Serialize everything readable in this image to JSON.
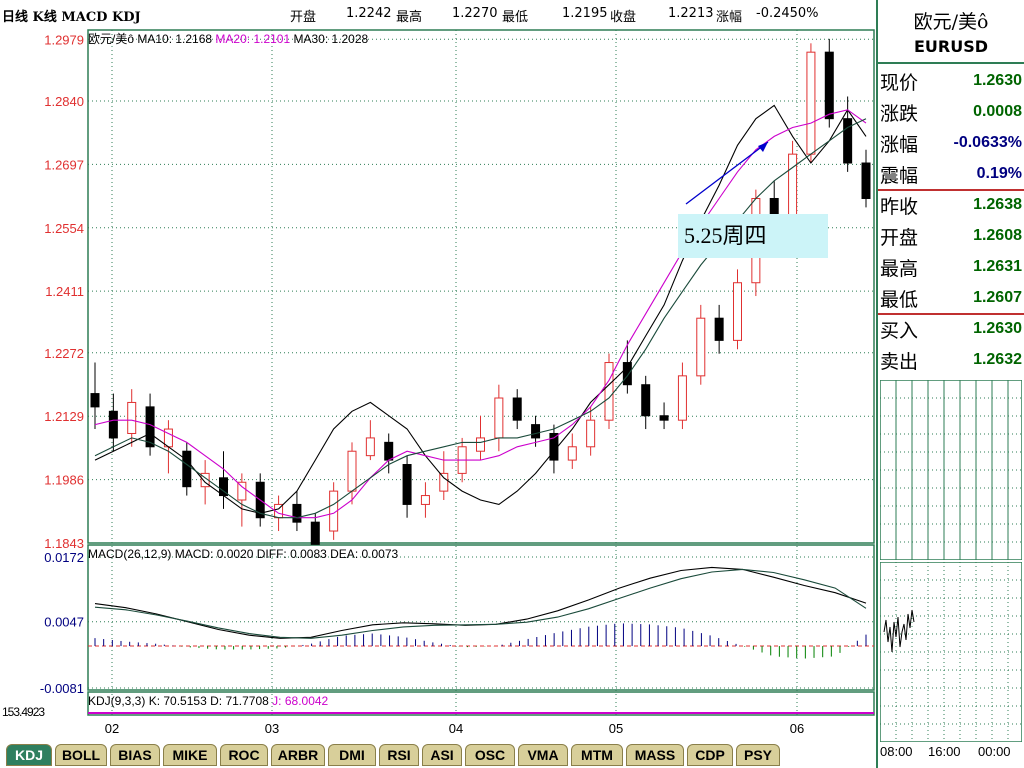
{
  "header": {
    "title": "日线 K线 MACD KDJ",
    "open_label": "开盘",
    "open_value": "1.2242",
    "high_label": "最高",
    "high_value": "1.2270",
    "low_label": "最低",
    "low_value": "1.2195",
    "close_label": "收盘",
    "close_value": "1.2213",
    "change_label": "涨幅",
    "change_value": "-0.2450%"
  },
  "legend": {
    "name": "欧元/美ô",
    "ma10": "MA10: 1.2168",
    "ma20": "MA20: 1.2101",
    "ma30": "MA30: 1.2028"
  },
  "macd_legend": {
    "params": "MACD(26,12,9)",
    "macd": "MACD: 0.0020",
    "diff": "DIFF: 0.0083",
    "dea": "DEA: 0.0073"
  },
  "kdj_legend": {
    "params": "KDJ(9,3,3)",
    "k": "K: 70.5153",
    "d": "D: 71.7708",
    "j": "J: 68.0042",
    "axis_overlap": "153.4923"
  },
  "annotation": {
    "text": "5.25周四"
  },
  "side": {
    "name": "欧元/美ô",
    "code": "EURUSD",
    "quotes": [
      {
        "k": "现价",
        "v": "1.2630"
      },
      {
        "k": "涨跌",
        "v": "0.0008"
      },
      {
        "k": "涨幅",
        "v": "-0.0633%"
      },
      {
        "k": "震幅",
        "v": "0.19%"
      },
      {
        "k": "昨收",
        "v": "1.2638"
      },
      {
        "k": "开盘",
        "v": "1.2608"
      },
      {
        "k": "最高",
        "v": "1.2631"
      },
      {
        "k": "最低",
        "v": "1.2607"
      },
      {
        "k": "买入",
        "v": "1.2630"
      },
      {
        "k": "卖出",
        "v": "1.2632"
      }
    ],
    "time_labels": [
      "08:00",
      "16:00",
      "00:00"
    ]
  },
  "tabs": [
    "KDJ",
    "BOLL",
    "BIAS",
    "MIKE",
    "ROC",
    "ARBR",
    "DMI",
    "RSI",
    "ASI",
    "OSC",
    "VMA",
    "MTM",
    "MASS",
    "CDP",
    "PSY"
  ],
  "colors": {
    "up": "#e03030",
    "down": "#000000",
    "ma10": "#000000",
    "ma20": "#cc00cc",
    "ma30": "#1a4a3a",
    "grid": "#2e7d55",
    "panel_border": "#2e7d55"
  },
  "chart_data": [
    {
      "type": "candlestick",
      "title": "欧元/美ô",
      "ylim": [
        1.1843,
        1.3
      ],
      "yticks": [
        "1.2979",
        "1.2840",
        "1.2697",
        "1.2554",
        "1.2411",
        "1.2272",
        "1.2129",
        "1.1986",
        "1.1843"
      ],
      "xticks": [
        "02",
        "03",
        "04",
        "05",
        "06"
      ],
      "series": [
        {
          "name": "MA10",
          "values": [
            1.203,
            1.205,
            1.207,
            1.209,
            1.206,
            1.203,
            1.198,
            1.195,
            1.192,
            1.191,
            1.192,
            1.196,
            1.203,
            1.21,
            1.214,
            1.216,
            1.213,
            1.21,
            1.204,
            1.199,
            1.196,
            1.194,
            1.193,
            1.196,
            1.2,
            1.205,
            1.21,
            1.216,
            1.22,
            1.224,
            1.231,
            1.238,
            1.248,
            1.257,
            1.265,
            1.274,
            1.28,
            1.283,
            1.276,
            1.27,
            1.275,
            1.282,
            1.276
          ]
        },
        {
          "name": "MA20",
          "values": [
            1.211,
            1.212,
            1.212,
            1.211,
            1.209,
            1.207,
            1.204,
            1.201,
            1.197,
            1.194,
            1.191,
            1.19,
            1.19,
            1.191,
            1.194,
            1.199,
            1.203,
            1.205,
            1.204,
            1.203,
            1.203,
            1.203,
            1.204,
            1.206,
            1.207,
            1.208,
            1.211,
            1.215,
            1.221,
            1.229,
            1.236,
            1.243,
            1.25,
            1.256,
            1.262,
            1.268,
            1.273,
            1.276,
            1.278,
            1.279,
            1.281,
            1.282,
            1.279
          ]
        },
        {
          "name": "MA30",
          "values": [
            1.204,
            1.206,
            1.208,
            1.207,
            1.205,
            1.202,
            1.199,
            1.196,
            1.193,
            1.191,
            1.19,
            1.19,
            1.191,
            1.193,
            1.196,
            1.199,
            1.202,
            1.204,
            1.205,
            1.206,
            1.207,
            1.207,
            1.208,
            1.208,
            1.209,
            1.21,
            1.212,
            1.214,
            1.217,
            1.222,
            1.228,
            1.235,
            1.241,
            1.247,
            1.252,
            1.257,
            1.262,
            1.266,
            1.269,
            1.272,
            1.275,
            1.278,
            1.28
          ]
        }
      ],
      "candles": [
        {
          "o": 1.218,
          "c": 1.215,
          "h": 1.225,
          "l": 1.21
        },
        {
          "o": 1.214,
          "c": 1.208,
          "h": 1.218,
          "l": 1.205
        },
        {
          "o": 1.209,
          "c": 1.216,
          "h": 1.219,
          "l": 1.206
        },
        {
          "o": 1.215,
          "c": 1.206,
          "h": 1.218,
          "l": 1.204
        },
        {
          "o": 1.206,
          "c": 1.21,
          "h": 1.212,
          "l": 1.2
        },
        {
          "o": 1.205,
          "c": 1.197,
          "h": 1.207,
          "l": 1.195
        },
        {
          "o": 1.197,
          "c": 1.2,
          "h": 1.203,
          "l": 1.193
        },
        {
          "o": 1.199,
          "c": 1.195,
          "h": 1.205,
          "l": 1.192
        },
        {
          "o": 1.194,
          "c": 1.198,
          "h": 1.2,
          "l": 1.188
        },
        {
          "o": 1.198,
          "c": 1.19,
          "h": 1.2,
          "l": 1.188
        },
        {
          "o": 1.19,
          "c": 1.193,
          "h": 1.195,
          "l": 1.187
        },
        {
          "o": 1.193,
          "c": 1.189,
          "h": 1.196,
          "l": 1.187
        },
        {
          "o": 1.189,
          "c": 1.184,
          "h": 1.191,
          "l": 1.184
        },
        {
          "o": 1.187,
          "c": 1.196,
          "h": 1.198,
          "l": 1.185
        },
        {
          "o": 1.196,
          "c": 1.205,
          "h": 1.207,
          "l": 1.193
        },
        {
          "o": 1.204,
          "c": 1.208,
          "h": 1.212,
          "l": 1.203
        },
        {
          "o": 1.207,
          "c": 1.203,
          "h": 1.209,
          "l": 1.2
        },
        {
          "o": 1.202,
          "c": 1.193,
          "h": 1.204,
          "l": 1.19
        },
        {
          "o": 1.193,
          "c": 1.195,
          "h": 1.198,
          "l": 1.19
        },
        {
          "o": 1.196,
          "c": 1.2,
          "h": 1.205,
          "l": 1.194
        },
        {
          "o": 1.2,
          "c": 1.206,
          "h": 1.208,
          "l": 1.198
        },
        {
          "o": 1.205,
          "c": 1.208,
          "h": 1.213,
          "l": 1.203
        },
        {
          "o": 1.208,
          "c": 1.217,
          "h": 1.22,
          "l": 1.205
        },
        {
          "o": 1.217,
          "c": 1.212,
          "h": 1.219,
          "l": 1.21
        },
        {
          "o": 1.211,
          "c": 1.208,
          "h": 1.213,
          "l": 1.206
        },
        {
          "o": 1.209,
          "c": 1.203,
          "h": 1.211,
          "l": 1.2
        },
        {
          "o": 1.203,
          "c": 1.206,
          "h": 1.209,
          "l": 1.201
        },
        {
          "o": 1.206,
          "c": 1.212,
          "h": 1.215,
          "l": 1.204
        },
        {
          "o": 1.212,
          "c": 1.225,
          "h": 1.227,
          "l": 1.21
        },
        {
          "o": 1.225,
          "c": 1.22,
          "h": 1.23,
          "l": 1.218
        },
        {
          "o": 1.22,
          "c": 1.213,
          "h": 1.222,
          "l": 1.21
        },
        {
          "o": 1.213,
          "c": 1.212,
          "h": 1.216,
          "l": 1.21
        },
        {
          "o": 1.212,
          "c": 1.222,
          "h": 1.225,
          "l": 1.21
        },
        {
          "o": 1.222,
          "c": 1.235,
          "h": 1.238,
          "l": 1.22
        },
        {
          "o": 1.235,
          "c": 1.23,
          "h": 1.238,
          "l": 1.227
        },
        {
          "o": 1.23,
          "c": 1.243,
          "h": 1.246,
          "l": 1.228
        },
        {
          "o": 1.243,
          "c": 1.262,
          "h": 1.264,
          "l": 1.24
        },
        {
          "o": 1.262,
          "c": 1.257,
          "h": 1.266,
          "l": 1.255
        },
        {
          "o": 1.257,
          "c": 1.272,
          "h": 1.275,
          "l": 1.255
        },
        {
          "o": 1.272,
          "c": 1.295,
          "h": 1.297,
          "l": 1.27
        },
        {
          "o": 1.295,
          "c": 1.28,
          "h": 1.298,
          "l": 1.278
        },
        {
          "o": 1.28,
          "c": 1.27,
          "h": 1.285,
          "l": 1.268
        },
        {
          "o": 1.27,
          "c": 1.262,
          "h": 1.273,
          "l": 1.26
        }
      ]
    },
    {
      "type": "line",
      "title": "MACD(26,12,9)",
      "ylim": [
        -0.0081,
        0.0172
      ],
      "yticks": [
        "0.0172",
        "0.0047",
        "-0.0081"
      ],
      "series": [
        {
          "name": "DIFF",
          "values": [
            0.0082,
            0.0074,
            0.0062,
            0.0047,
            0.0032,
            0.0021,
            0.0015,
            0.0017,
            0.003,
            0.0041,
            0.0045,
            0.0043,
            0.004,
            0.0042,
            0.0052,
            0.0068,
            0.0089,
            0.0112,
            0.0131,
            0.0146,
            0.0152,
            0.0148,
            0.0133,
            0.0117,
            0.0103,
            0.0083
          ]
        },
        {
          "name": "DEA",
          "values": [
            0.0075,
            0.007,
            0.006,
            0.0048,
            0.0035,
            0.0024,
            0.0017,
            0.0015,
            0.0021,
            0.003,
            0.0037,
            0.004,
            0.0041,
            0.0042,
            0.0046,
            0.0056,
            0.0072,
            0.0092,
            0.0112,
            0.013,
            0.0143,
            0.0148,
            0.0142,
            0.0128,
            0.0112,
            0.0073
          ]
        }
      ]
    },
    {
      "type": "line",
      "title": "KDJ(9,3,3)",
      "series": [
        {
          "name": "K",
          "values": [
            70.5153
          ]
        },
        {
          "name": "D",
          "values": [
            71.7708
          ]
        },
        {
          "name": "J",
          "values": [
            68.0042
          ]
        }
      ]
    }
  ]
}
